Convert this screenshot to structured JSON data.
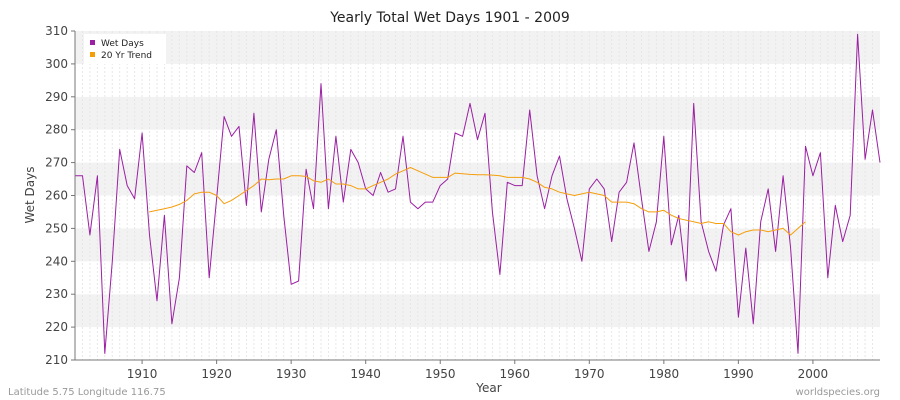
{
  "colors": {
    "wet": "#9b1fa3",
    "trend": "#f59e0b",
    "band": "#f2f2f2",
    "grid": "#e6e6e6"
  },
  "footer": {
    "left": "Latitude 5.75 Longitude 116.75",
    "right": "worldspecies.org"
  },
  "chart_data": {
    "type": "line",
    "title": "Yearly Total Wet Days 1901 - 2009",
    "xlabel": "Year",
    "ylabel": "Wet Days",
    "xlim": [
      1901,
      2009
    ],
    "ylim": [
      210,
      310
    ],
    "x_ticks": [
      1910,
      1920,
      1930,
      1940,
      1950,
      1960,
      1970,
      1980,
      1990,
      2000
    ],
    "y_ticks": [
      210,
      220,
      230,
      240,
      250,
      260,
      270,
      280,
      290,
      300,
      310
    ],
    "grid": true,
    "legend_position": "top-left",
    "series": [
      {
        "name": "Wet Days",
        "x": [
          1901,
          1902,
          1903,
          1904,
          1905,
          1906,
          1907,
          1908,
          1909,
          1910,
          1911,
          1912,
          1913,
          1914,
          1915,
          1916,
          1917,
          1918,
          1919,
          1920,
          1921,
          1922,
          1923,
          1924,
          1925,
          1926,
          1927,
          1928,
          1929,
          1930,
          1931,
          1932,
          1933,
          1934,
          1935,
          1936,
          1937,
          1938,
          1939,
          1940,
          1941,
          1942,
          1943,
          1944,
          1945,
          1946,
          1947,
          1948,
          1949,
          1950,
          1951,
          1952,
          1953,
          1954,
          1955,
          1956,
          1957,
          1958,
          1959,
          1960,
          1961,
          1962,
          1963,
          1964,
          1965,
          1966,
          1967,
          1968,
          1969,
          1970,
          1971,
          1972,
          1973,
          1974,
          1975,
          1976,
          1977,
          1978,
          1979,
          1980,
          1981,
          1982,
          1983,
          1984,
          1985,
          1986,
          1987,
          1988,
          1989,
          1990,
          1991,
          1992,
          1993,
          1994,
          1995,
          1996,
          1997,
          1998,
          1999,
          2000,
          2001,
          2002,
          2003,
          2004,
          2005,
          2006,
          2007,
          2008,
          2009
        ],
        "values": [
          266,
          266,
          248,
          266,
          212,
          240,
          274,
          263,
          259,
          279,
          248,
          228,
          254,
          221,
          235,
          269,
          267,
          273,
          235,
          259,
          284,
          278,
          281,
          257,
          285,
          255,
          271,
          280,
          254,
          233,
          234,
          268,
          256,
          294,
          256,
          278,
          258,
          274,
          270,
          262,
          260,
          267,
          261,
          262,
          278,
          258,
          256,
          258,
          258,
          263,
          265,
          279,
          278,
          288,
          277,
          285,
          255,
          236,
          264,
          263,
          263,
          286,
          266,
          256,
          266,
          272,
          259,
          250,
          240,
          262,
          265,
          262,
          246,
          261,
          264,
          276,
          259,
          243,
          252,
          278,
          245,
          254,
          234,
          288,
          252,
          243,
          237,
          251,
          256,
          223,
          244,
          221,
          252,
          262,
          243,
          266,
          244,
          212,
          275,
          266,
          273,
          235,
          257,
          246,
          254,
          309,
          271,
          286,
          270
        ]
      },
      {
        "name": "20 Yr Trend",
        "x": [
          1911,
          1912,
          1913,
          1914,
          1915,
          1916,
          1917,
          1918,
          1919,
          1920,
          1921,
          1922,
          1923,
          1924,
          1925,
          1926,
          1927,
          1928,
          1929,
          1930,
          1931,
          1932,
          1933,
          1934,
          1935,
          1936,
          1937,
          1938,
          1939,
          1940,
          1941,
          1942,
          1943,
          1944,
          1945,
          1946,
          1947,
          1948,
          1949,
          1950,
          1951,
          1952,
          1953,
          1954,
          1955,
          1956,
          1957,
          1958,
          1959,
          1960,
          1961,
          1962,
          1963,
          1964,
          1965,
          1966,
          1967,
          1968,
          1969,
          1970,
          1971,
          1972,
          1973,
          1974,
          1975,
          1976,
          1977,
          1978,
          1979,
          1980,
          1981,
          1982,
          1983,
          1984,
          1985,
          1986,
          1987,
          1988,
          1989,
          1990,
          1991,
          1992,
          1993,
          1994,
          1995,
          1996,
          1997,
          1998,
          1999
        ],
        "values": [
          255,
          255.5,
          256,
          256.5,
          257.3,
          258.5,
          260.5,
          261,
          261,
          260,
          257.5,
          258.5,
          260,
          261.5,
          263,
          265,
          264.8,
          265,
          265,
          266,
          266,
          265.8,
          264.5,
          264,
          265,
          263.5,
          263.5,
          263,
          262,
          262,
          263,
          264,
          265,
          266.5,
          267.5,
          268.5,
          267.5,
          266.5,
          265.5,
          265.5,
          265.5,
          266.8,
          266.6,
          266.4,
          266.3,
          266.3,
          266.2,
          266,
          265.5,
          265.5,
          265.5,
          265,
          264,
          262.5,
          262,
          261,
          260.5,
          260,
          260.5,
          261,
          260.5,
          260,
          258,
          258,
          258,
          257.5,
          256,
          255,
          255,
          255.5,
          254,
          253,
          252.5,
          252,
          251.5,
          252,
          251.5,
          251.5,
          249,
          248,
          249,
          249.5,
          249.5,
          249,
          249.5,
          250,
          248,
          250,
          252
        ]
      }
    ]
  }
}
